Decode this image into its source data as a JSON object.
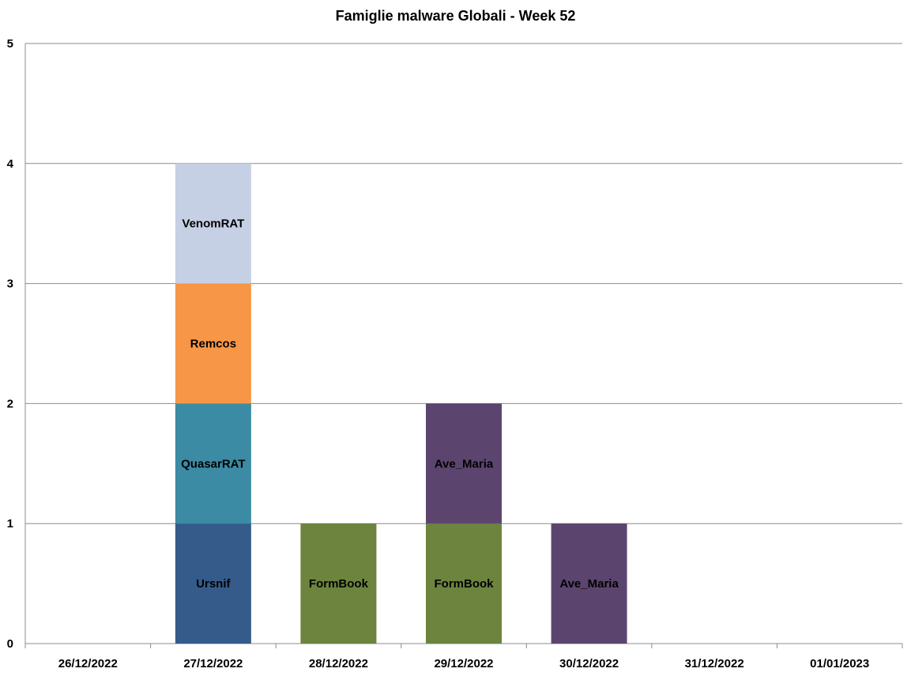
{
  "chart_data": {
    "type": "bar",
    "stacked": true,
    "title": "Famiglie malware Globali - Week 52",
    "xlabel": "",
    "ylabel": "",
    "ylim": [
      0,
      5
    ],
    "yticks": [
      "0",
      "1",
      "2",
      "3",
      "4",
      "5"
    ],
    "grid": true,
    "legend": "none",
    "categories": [
      "26/12/2022",
      "27/12/2022",
      "28/12/2022",
      "29/12/2022",
      "30/12/2022",
      "31/12/2022",
      "01/01/2023"
    ],
    "series": [
      {
        "name": "Ursnif",
        "color": "#355B8B",
        "values": [
          0,
          1,
          0,
          0,
          0,
          0,
          0
        ]
      },
      {
        "name": "FormBook",
        "color": "#6C843E",
        "values": [
          0,
          0,
          1,
          1,
          0,
          0,
          0
        ]
      },
      {
        "name": "QuasarRAT",
        "color": "#3B8BA4",
        "values": [
          0,
          1,
          0,
          0,
          0,
          0,
          0
        ]
      },
      {
        "name": "Ave_Maria",
        "color": "#5B456F",
        "values": [
          0,
          0,
          0,
          1,
          1,
          0,
          0
        ]
      },
      {
        "name": "Remcos",
        "color": "#F79646",
        "values": [
          0,
          1,
          0,
          0,
          0,
          0,
          0
        ]
      },
      {
        "name": "VenomRAT",
        "color": "#C6D0E4",
        "values": [
          0,
          1,
          0,
          0,
          0,
          0,
          0
        ]
      }
    ]
  }
}
